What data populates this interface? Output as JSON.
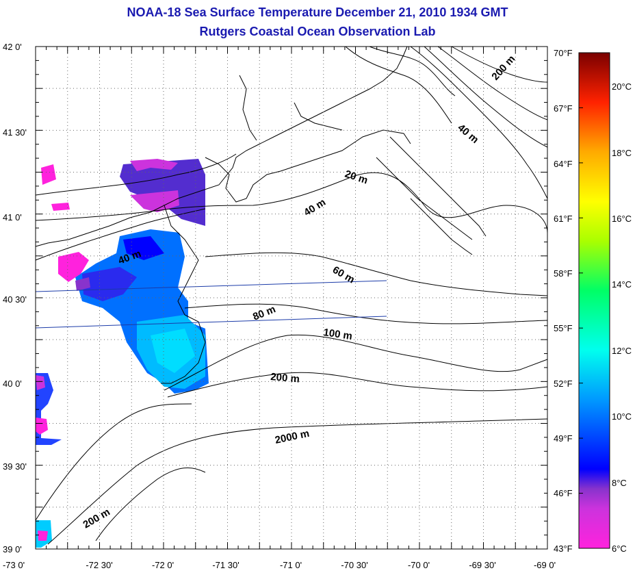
{
  "title": "NOAA-18 Sea Surface Temperature December 21, 2010 1934 GMT",
  "subtitle": "Rutgers Coastal Ocean Observation Lab",
  "map": {
    "lon_ticks": [
      "-73 0'",
      "-72 30'",
      "-72 0'",
      "-71 30'",
      "-71 0'",
      "-70 30'",
      "-70 0'",
      "-69 30'",
      "-69 0'"
    ],
    "lat_ticks": [
      "42 0'",
      "41 30'",
      "41 0'",
      "40 30'",
      "40 0'",
      "39 30'",
      "39 0'"
    ],
    "lon_range": [
      -73,
      -69
    ],
    "lat_range": [
      39,
      42
    ],
    "grid": "dotted",
    "contour_labels": [
      "200 m",
      "40 m",
      "20 m",
      "40 m",
      "40 m",
      "60 m",
      "80 m",
      "100 m",
      "200 m",
      "2000 m",
      "200 m"
    ]
  },
  "colorbar": {
    "fahrenheit_labels": [
      "70°F",
      "67°F",
      "64°F",
      "61°F",
      "58°F",
      "55°F",
      "52°F",
      "49°F",
      "46°F",
      "43°F"
    ],
    "celsius_labels": [
      "20°C",
      "18°C",
      "16°C",
      "14°C",
      "12°C",
      "10°C",
      "8°C",
      "6°C"
    ],
    "range_f": [
      43,
      70
    ],
    "colors": [
      "#ff22dd",
      "#8833cc",
      "#0000ff",
      "#00aaff",
      "#00ffee",
      "#00ff66",
      "#aaff00",
      "#ffff00",
      "#ffaa00",
      "#ff3300",
      "#dd0000",
      "#880000"
    ]
  }
}
